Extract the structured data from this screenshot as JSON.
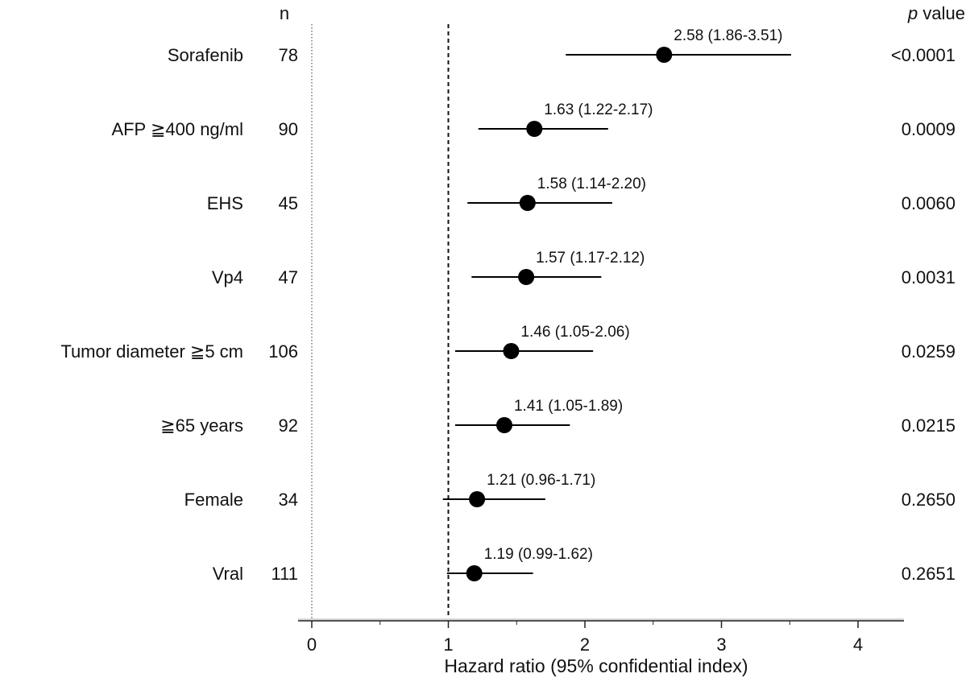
{
  "chart_data": {
    "type": "forest",
    "columns": {
      "n_header": "n",
      "p_header_italic": "p",
      "p_header_rest": " value"
    },
    "rows": [
      {
        "label": "Sorafenib",
        "n": "78",
        "hr": 2.58,
        "lo": 1.86,
        "hi": 3.51,
        "ci_label": "2.58 (1.86-3.51)",
        "p": "<0.0001"
      },
      {
        "label": "AFP ≧400 ng/ml",
        "n": "90",
        "hr": 1.63,
        "lo": 1.22,
        "hi": 2.17,
        "ci_label": "1.63 (1.22-2.17)",
        "p": "0.0009"
      },
      {
        "label": "EHS",
        "n": "45",
        "hr": 1.58,
        "lo": 1.14,
        "hi": 2.2,
        "ci_label": "1.58 (1.14-2.20)",
        "p": "0.0060"
      },
      {
        "label": "Vp4",
        "n": "47",
        "hr": 1.57,
        "lo": 1.17,
        "hi": 2.12,
        "ci_label": "1.57 (1.17-2.12)",
        "p": "0.0031"
      },
      {
        "label": "Tumor diameter ≧5 cm",
        "n": "106",
        "hr": 1.46,
        "lo": 1.05,
        "hi": 2.06,
        "ci_label": "1.46 (1.05-2.06)",
        "p": "0.0259"
      },
      {
        "label": "≧65 years",
        "n": "92",
        "hr": 1.41,
        "lo": 1.05,
        "hi": 1.89,
        "ci_label": "1.41 (1.05-1.89)",
        "p": "0.0215"
      },
      {
        "label": "Female",
        "n": "34",
        "hr": 1.21,
        "lo": 0.96,
        "hi": 1.71,
        "ci_label": "1.21 (0.96-1.71)",
        "p": "0.2650"
      },
      {
        "label": "Vral",
        "n": "111",
        "hr": 1.19,
        "lo": 0.99,
        "hi": 1.62,
        "ci_label": "1.19 (0.99-1.62)",
        "p": "0.2651"
      }
    ],
    "x_ticks": [
      "0",
      "1",
      "2",
      "3",
      "4"
    ],
    "xlim": [
      0,
      4.3
    ],
    "reference_line": 1,
    "xlabel": "Hazard ratio (95% confidential index)",
    "grid": false
  }
}
